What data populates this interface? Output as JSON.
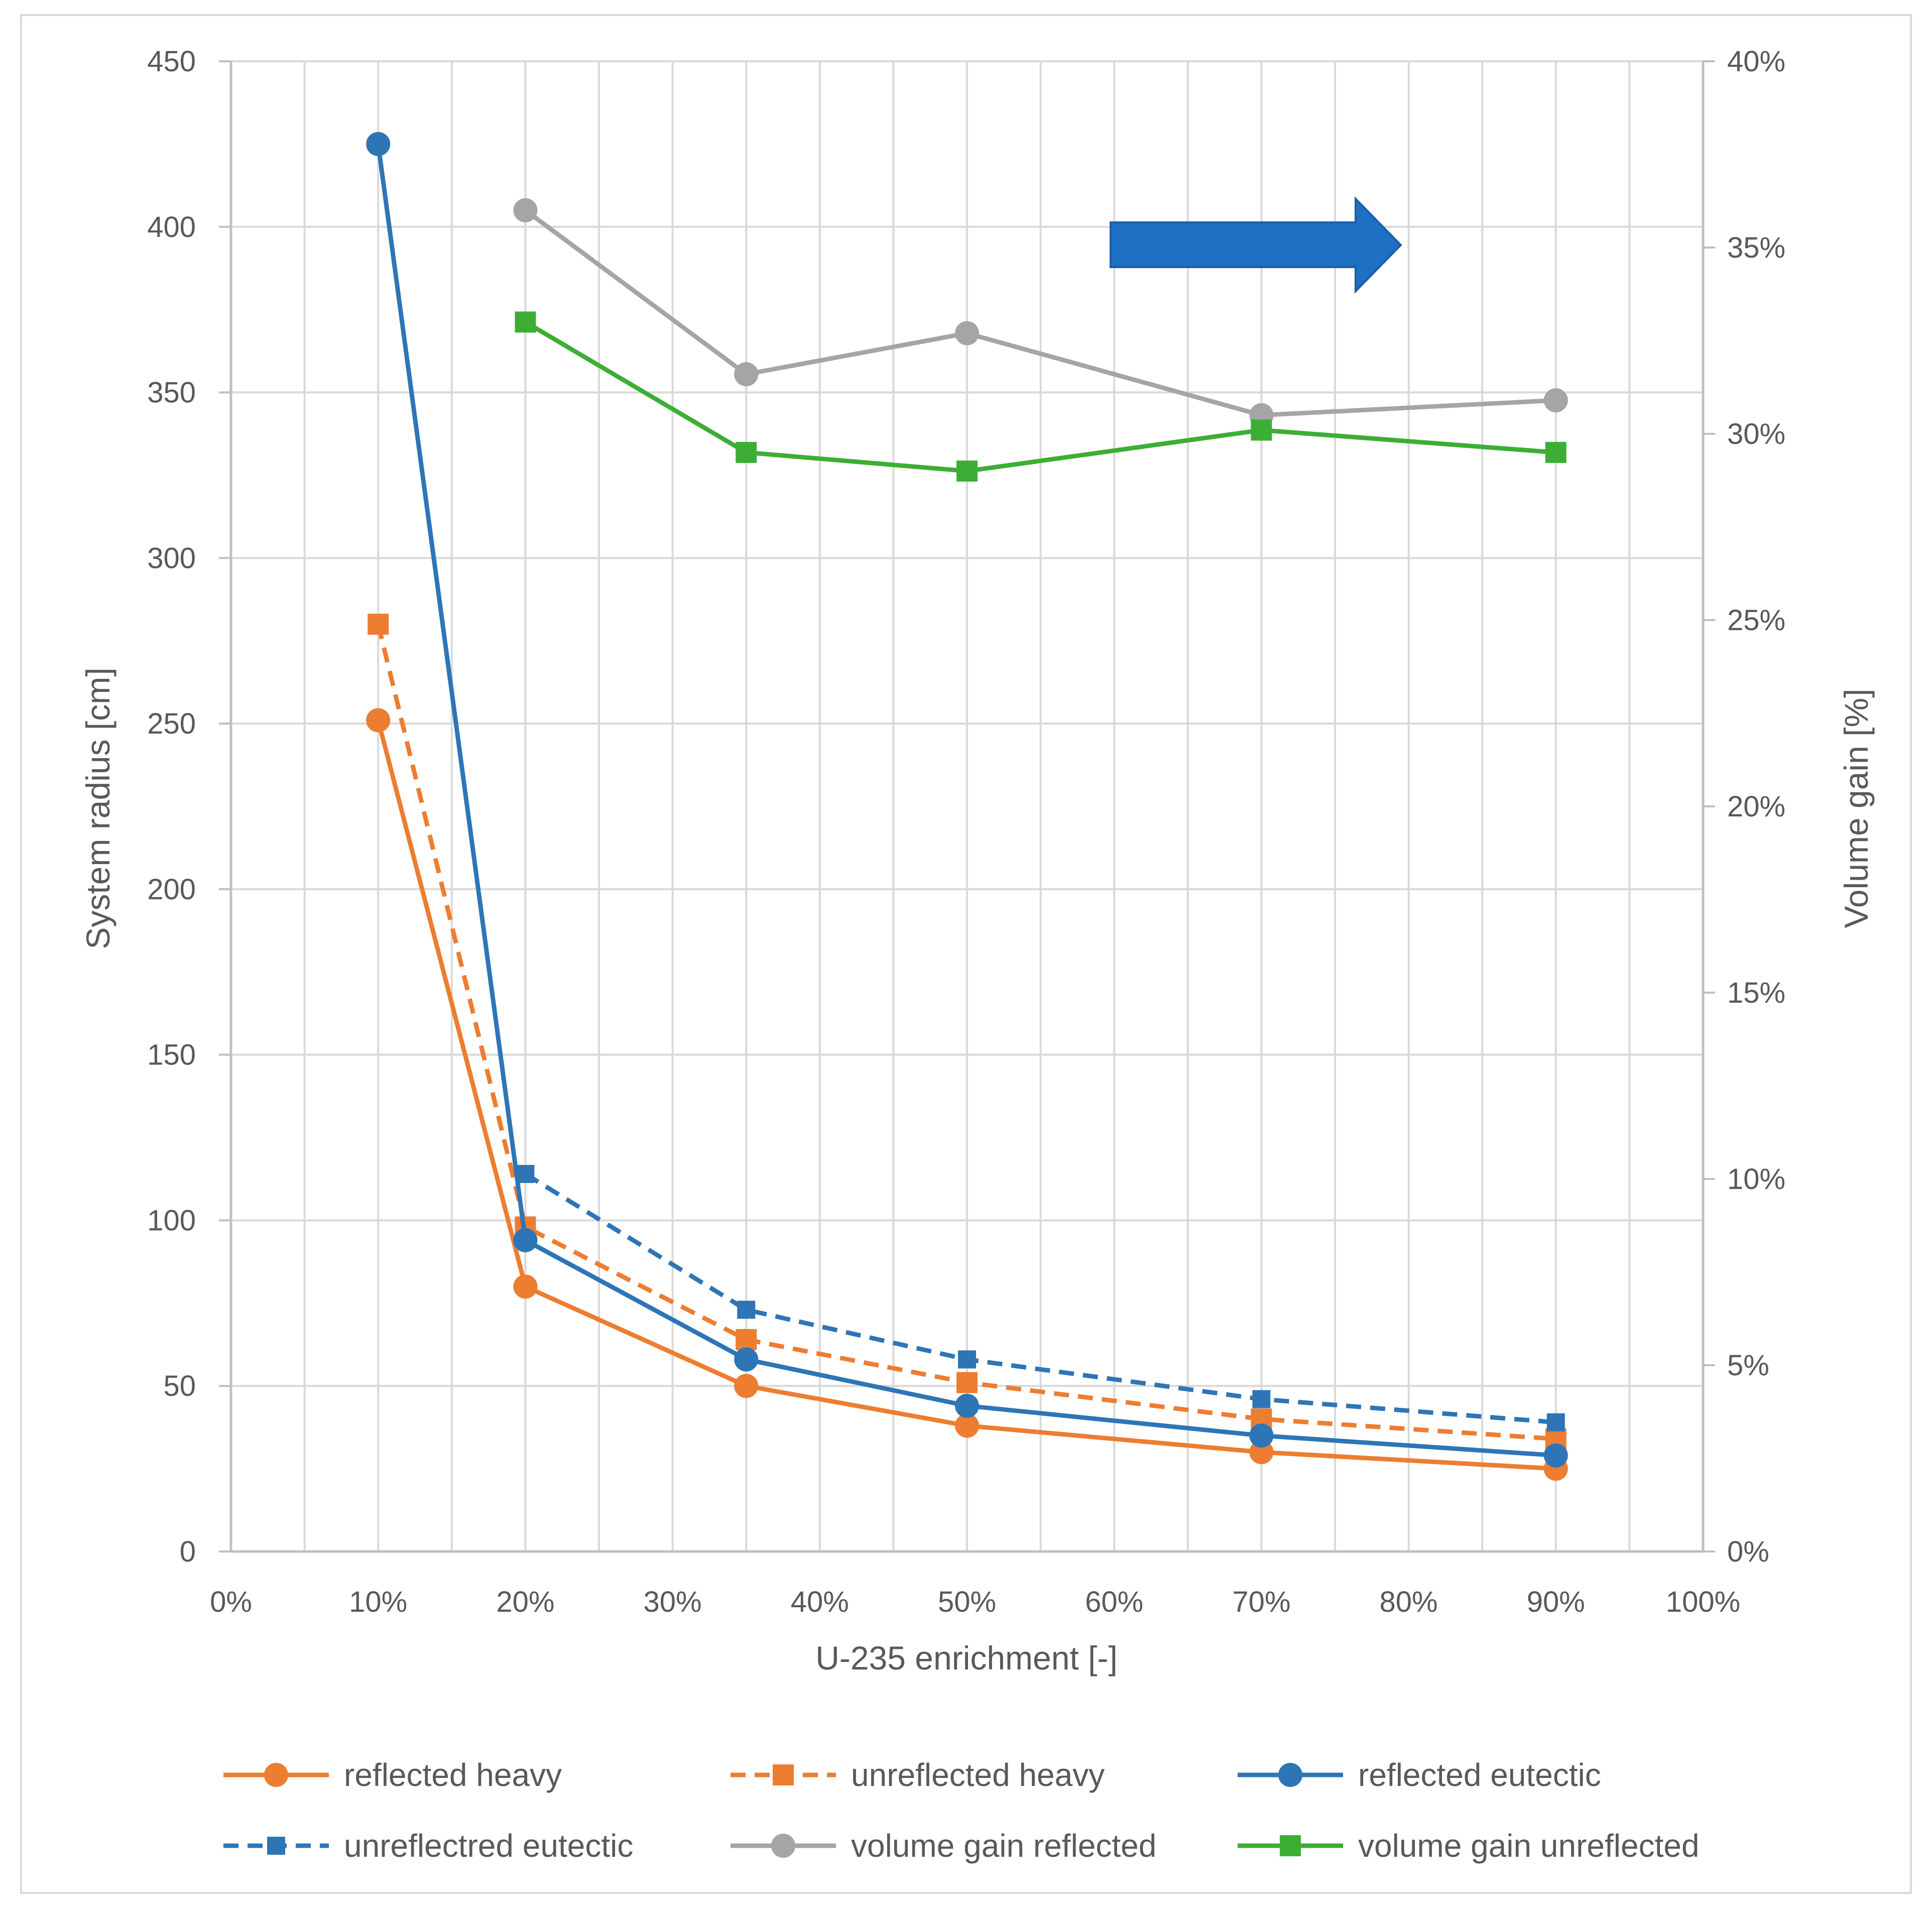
{
  "chart_data": {
    "type": "line",
    "title": "",
    "xlabel": "U-235 enrichment [-]",
    "ylabel": "System radius [cm]",
    "y2label": "Volume  gain [%]",
    "xlim": [
      0,
      100
    ],
    "ylim": [
      0,
      450
    ],
    "y2lim": [
      0,
      40
    ],
    "x_ticks": [
      "0%",
      "10%",
      "20%",
      "30%",
      "40%",
      "50%",
      "60%",
      "70%",
      "80%",
      "90%",
      "100%"
    ],
    "y_ticks": [
      "0",
      "50",
      "100",
      "150",
      "200",
      "250",
      "300",
      "350",
      "400",
      "450"
    ],
    "y2_ticks": [
      "0%",
      "5%",
      "10%",
      "15%",
      "20%",
      "25%",
      "30%",
      "35%",
      "40%"
    ],
    "grid": true,
    "legend_position": "bottom",
    "annotation": "right-pointing arrow indicating volume gain series belong to right axis",
    "series": [
      {
        "name": "reflected heavy",
        "axis": "left",
        "color": "#ED7D31",
        "dash": "solid",
        "marker": "circle",
        "x": [
          10,
          20,
          35,
          50,
          70,
          90
        ],
        "y": [
          251,
          80,
          50,
          38,
          30,
          25
        ]
      },
      {
        "name": "unreflected heavy",
        "axis": "left",
        "color": "#ED7D31",
        "dash": "dashed",
        "marker": "square",
        "x": [
          10,
          20,
          35,
          50,
          70,
          90
        ],
        "y": [
          280,
          98,
          64,
          51,
          40,
          34
        ]
      },
      {
        "name": "reflected eutectic",
        "axis": "left",
        "color": "#2E75B6",
        "dash": "solid",
        "marker": "circle",
        "x": [
          10,
          20,
          35,
          50,
          70,
          90
        ],
        "y": [
          425,
          94,
          58,
          44,
          35,
          29
        ]
      },
      {
        "name": "unreflectred eutectic",
        "axis": "left",
        "color": "#2E75B6",
        "dash": "dashed",
        "marker": "square-small",
        "x": [
          20,
          35,
          50,
          70,
          90
        ],
        "y": [
          114,
          73,
          58,
          46,
          39
        ]
      },
      {
        "name": "volume gain reflected",
        "axis": "right",
        "color": "#A5A5A5",
        "dash": "solid",
        "marker": "circle",
        "x": [
          20,
          35,
          50,
          70,
          90
        ],
        "y": [
          36,
          31.6,
          32.7,
          30.5,
          30.9
        ]
      },
      {
        "name": "volume gain unreflected",
        "axis": "right",
        "color": "#3DAE35",
        "dash": "solid",
        "marker": "square",
        "x": [
          20,
          35,
          50,
          70,
          90
        ],
        "y": [
          33,
          29.5,
          29,
          30.1,
          29.5
        ]
      }
    ]
  }
}
